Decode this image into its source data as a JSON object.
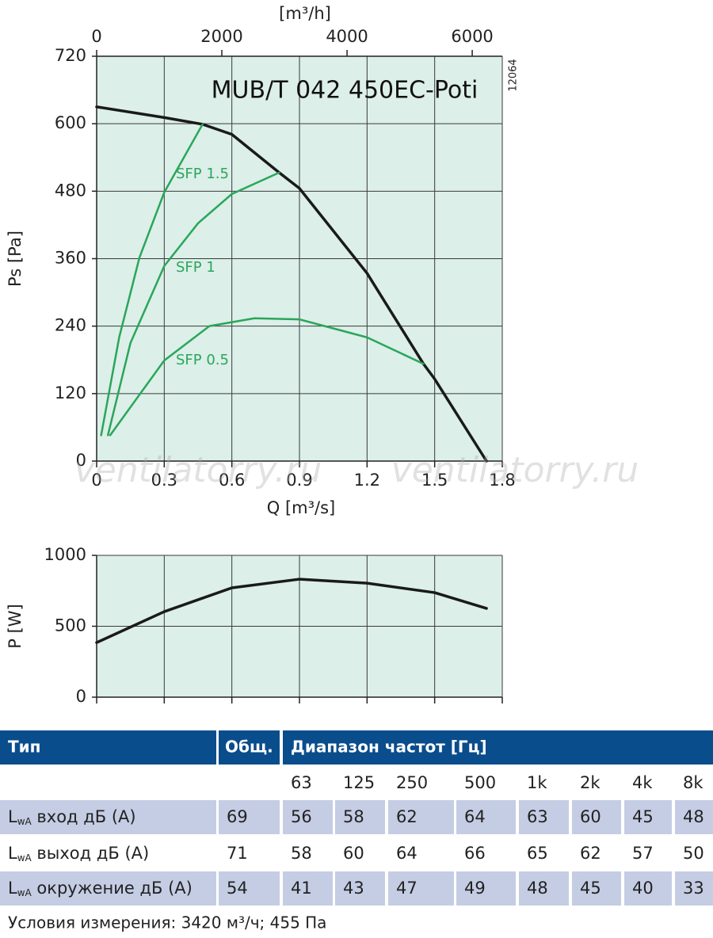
{
  "chart_data": [
    {
      "type": "line",
      "title": "MUB/T 042 450EC-Poti",
      "code": "12064",
      "x_label": "Q [m³/s]",
      "x2_label": "[m³/h]",
      "y_label": "Ps [Pa]",
      "xlim": [
        0,
        1.8
      ],
      "xticks": [
        0,
        0.3,
        0.6,
        0.9,
        1.2,
        1.5,
        1.8
      ],
      "x2lim": [
        0,
        6480
      ],
      "x2ticks": [
        0,
        2000,
        4000,
        6000
      ],
      "ylim": [
        0,
        720
      ],
      "yticks": [
        0,
        120,
        240,
        360,
        480,
        600,
        720
      ],
      "grid": true,
      "background": "#dcefe9",
      "watermark": [
        "ventilatorry.ru",
        "ventilatorry.ru"
      ],
      "series": [
        {
          "color": "#1a1a1a",
          "x": [
            0,
            0.3,
            0.47,
            0.6,
            0.81,
            0.9,
            1.2,
            1.45,
            1.5,
            1.73
          ],
          "values": [
            630,
            611,
            599,
            581,
            513,
            485,
            334,
            173,
            146,
            0
          ]
        },
        {
          "name": "SFP 1.5",
          "color": "#2aa65a",
          "x": [
            0.02,
            0.1,
            0.19,
            0.3,
            0.47
          ],
          "values": [
            46,
            220,
            362,
            478,
            599
          ]
        },
        {
          "name": "SFP 1",
          "color": "#2aa65a",
          "x": [
            0.05,
            0.15,
            0.3,
            0.45,
            0.6,
            0.81
          ],
          "values": [
            46,
            210,
            347,
            423,
            475,
            513
          ]
        },
        {
          "name": "SFP 0.5",
          "color": "#2aa65a",
          "x": [
            0.06,
            0.3,
            0.5,
            0.7,
            0.9,
            1.2,
            1.45
          ],
          "values": [
            46,
            179,
            240,
            254,
            252,
            220,
            173
          ]
        }
      ]
    },
    {
      "type": "line",
      "y_label": "P [W]",
      "xlim": [
        0,
        1.8
      ],
      "xticks": [
        0,
        0.3,
        0.6,
        0.9,
        1.2,
        1.5,
        1.8
      ],
      "ylim": [
        0,
        1000
      ],
      "yticks": [
        0,
        500,
        1000
      ],
      "grid": true,
      "background": "#dcefe9",
      "series": [
        {
          "color": "#1a1a1a",
          "x": [
            0,
            0.3,
            0.6,
            0.9,
            1.2,
            1.5,
            1.73
          ],
          "values": [
            385,
            603,
            771,
            832,
            804,
            737,
            626
          ]
        }
      ]
    }
  ],
  "table": {
    "header": [
      "Тип",
      "Общ.",
      "Диапазон частот [Гц]"
    ],
    "frequencies": [
      "63",
      "125",
      "250",
      "500",
      "1k",
      "2k",
      "4k",
      "8k"
    ],
    "rows": [
      {
        "label": [
          "L",
          "wA",
          " вход дБ (A)"
        ],
        "total": 69,
        "values": [
          56,
          58,
          62,
          64,
          63,
          60,
          45,
          48
        ]
      },
      {
        "label": [
          "L",
          "wA",
          " выход дБ (A)"
        ],
        "total": 71,
        "values": [
          58,
          60,
          64,
          66,
          65,
          62,
          57,
          50
        ]
      },
      {
        "label": [
          "L",
          "wA",
          " окружение дБ (A)"
        ],
        "total": 54,
        "values": [
          41,
          43,
          47,
          49,
          48,
          45,
          40,
          33
        ]
      }
    ],
    "footnote": "Условия измерения: 3420 м³/ч; 455 Па"
  }
}
